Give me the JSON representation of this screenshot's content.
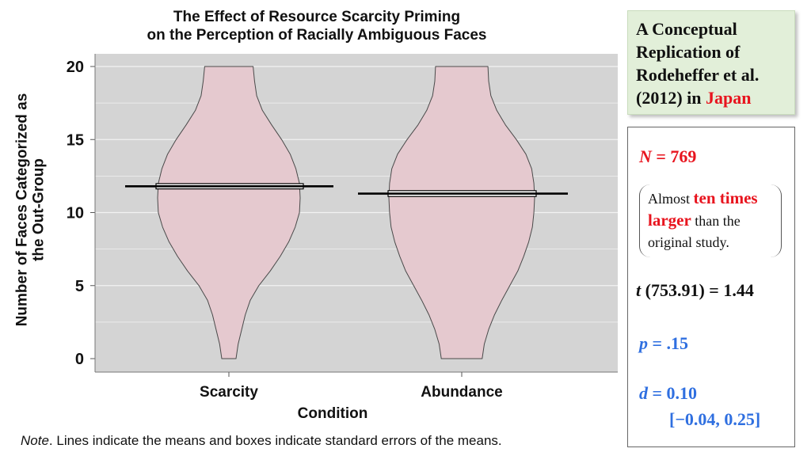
{
  "chart_data": {
    "type": "violin",
    "title_line1": "The Effect of Resource Scarcity Priming",
    "title_line2": "on the Perception of Racially Ambiguous Faces",
    "ylabel_line1": "Number of Faces Categorized as",
    "ylabel_line2": "the Out-Group",
    "xlabel": "Condition",
    "categories": [
      "Scarcity",
      "Abundance"
    ],
    "ylim": [
      0,
      20
    ],
    "yticks": [
      0,
      5,
      10,
      15,
      20
    ],
    "grid": true,
    "series": [
      {
        "category": "Scarcity",
        "mean": 11.8,
        "se_low": 11.62,
        "se_high": 11.98,
        "range": [
          0,
          20
        ],
        "density_profile": [
          [
            0,
            0.1
          ],
          [
            1,
            0.13
          ],
          [
            2,
            0.18
          ],
          [
            3,
            0.23
          ],
          [
            4,
            0.3
          ],
          [
            5,
            0.42
          ],
          [
            6,
            0.58
          ],
          [
            7,
            0.72
          ],
          [
            8,
            0.84
          ],
          [
            9,
            0.93
          ],
          [
            10,
            0.99
          ],
          [
            11,
            1.0
          ],
          [
            12,
            0.99
          ],
          [
            13,
            0.94
          ],
          [
            14,
            0.86
          ],
          [
            15,
            0.74
          ],
          [
            16,
            0.6
          ],
          [
            17,
            0.47
          ],
          [
            18,
            0.39
          ],
          [
            19,
            0.36
          ],
          [
            20,
            0.34
          ]
        ]
      },
      {
        "category": "Abundance",
        "mean": 11.3,
        "se_low": 11.1,
        "se_high": 11.5,
        "range": [
          0,
          20
        ],
        "density_profile": [
          [
            0,
            0.28
          ],
          [
            1,
            0.31
          ],
          [
            2,
            0.37
          ],
          [
            3,
            0.45
          ],
          [
            4,
            0.55
          ],
          [
            5,
            0.66
          ],
          [
            6,
            0.77
          ],
          [
            7,
            0.85
          ],
          [
            8,
            0.92
          ],
          [
            9,
            0.97
          ],
          [
            10,
            0.99
          ],
          [
            11,
            1.0
          ],
          [
            12,
            0.99
          ],
          [
            13,
            0.96
          ],
          [
            14,
            0.88
          ],
          [
            15,
            0.75
          ],
          [
            16,
            0.6
          ],
          [
            17,
            0.48
          ],
          [
            18,
            0.4
          ],
          [
            19,
            0.37
          ],
          [
            20,
            0.36
          ]
        ]
      }
    ],
    "colors": {
      "violin_fill": "#e5c9cf",
      "violin_stroke": "#4a4a4a",
      "plot_bg": "#d4d4d4",
      "grid": "#f2f2f2",
      "mean_line": "#000000",
      "se_box_fill": "#ffffff"
    }
  },
  "note": {
    "label": "Note",
    "text": ". Lines indicate the means and boxes indicate standard errors of the means."
  },
  "info_box": {
    "line1": "A Conceptual",
    "line2": "Replication of",
    "line3": "Rodeheffer et al.",
    "line4_prefix": "(2012) in ",
    "line4_highlight": "Japan",
    "highlight_color": "#e8141e",
    "bg_color": "#e2efd9"
  },
  "stats": {
    "n_label": "N",
    "n_value": " = 769",
    "callout_text1": "Almost ",
    "callout_highlight1": "ten times",
    "callout_highlight2": "larger",
    "callout_text2": " than the",
    "callout_text3": "original study.",
    "t_label": "t",
    "t_value": " (753.91) = 1.44",
    "p_label": "p",
    "p_value": " = .15",
    "d_label": "d",
    "d_value": " = 0.10",
    "d_ci": "[−0.04, 0.25]",
    "stat_red": "#e8141e",
    "stat_blue": "#2f6fe0"
  }
}
